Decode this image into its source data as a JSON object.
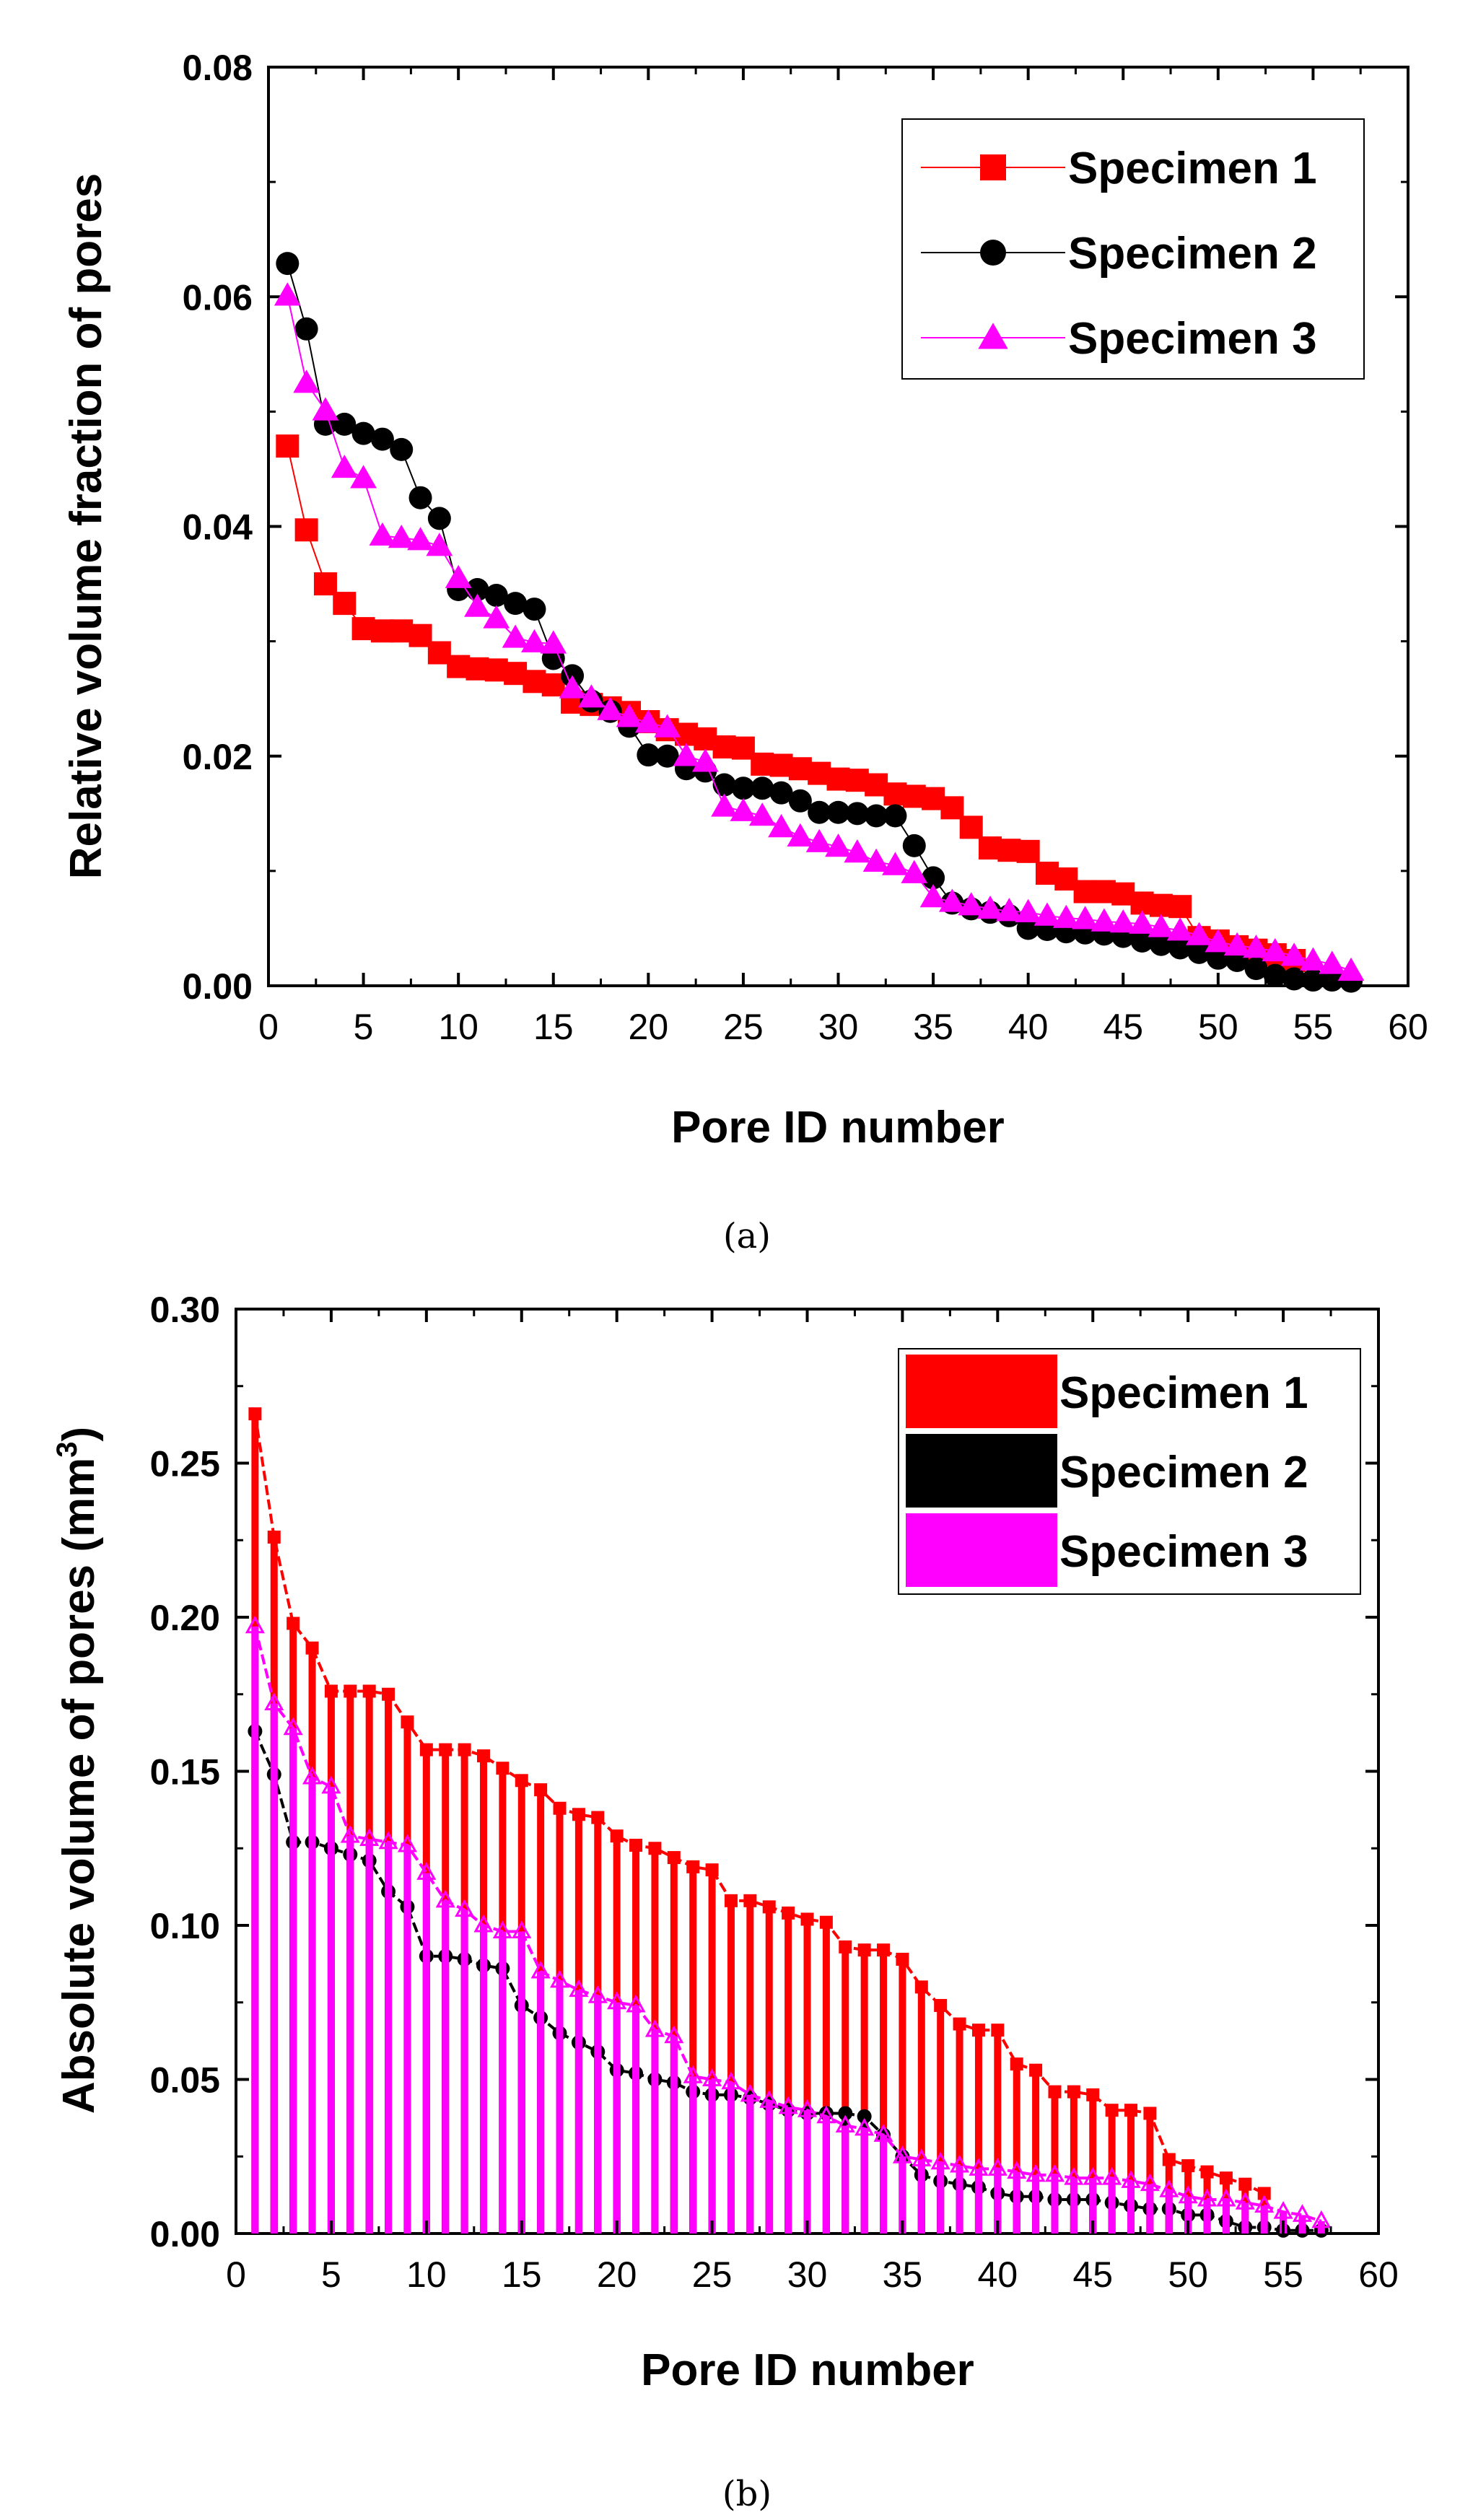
{
  "chart_data": [
    {
      "panel": "(a)",
      "type": "line",
      "title": "",
      "xlabel": "Pore ID number",
      "ylabel": "Relative volume fraction of pores",
      "xlim": [
        0,
        60
      ],
      "ylim": [
        0,
        0.08
      ],
      "xticks": [
        0,
        5,
        10,
        15,
        20,
        25,
        30,
        35,
        40,
        45,
        50,
        55,
        60
      ],
      "yticks": [
        "0.00",
        "0.02",
        "0.04",
        "0.06",
        "0.08"
      ],
      "legend_position": "top-right",
      "series": [
        {
          "name": "Specimen 1",
          "color": "#ff0000",
          "marker": "square",
          "x": [
            1,
            2,
            3,
            4,
            5,
            6,
            7,
            8,
            9,
            10,
            11,
            12,
            13,
            14,
            15,
            16,
            17,
            18,
            19,
            20,
            21,
            22,
            23,
            24,
            25,
            26,
            27,
            28,
            29,
            30,
            31,
            32,
            33,
            34,
            35,
            36,
            37,
            38,
            39,
            40,
            41,
            42,
            43,
            44,
            45,
            46,
            47,
            48,
            49,
            50,
            51,
            52,
            53,
            54
          ],
          "values": [
            0.047,
            0.0397,
            0.035,
            0.0333,
            0.0311,
            0.0309,
            0.0309,
            0.0305,
            0.029,
            0.0278,
            0.0276,
            0.0275,
            0.0272,
            0.0265,
            0.0262,
            0.0247,
            0.0245,
            0.0242,
            0.0238,
            0.023,
            0.0223,
            0.0219,
            0.0215,
            0.0208,
            0.0207,
            0.0193,
            0.0192,
            0.0189,
            0.0185,
            0.018,
            0.0179,
            0.0175,
            0.0167,
            0.0165,
            0.0163,
            0.0155,
            0.0138,
            0.012,
            0.0118,
            0.0117,
            0.0098,
            0.0093,
            0.0082,
            0.0082,
            0.008,
            0.0072,
            0.007,
            0.0069,
            0.0042,
            0.0039,
            0.0034,
            0.0031,
            0.0027,
            0.0022
          ]
        },
        {
          "name": "Specimen 2",
          "color": "#000000",
          "marker": "circle",
          "x": [
            1,
            2,
            3,
            4,
            5,
            6,
            7,
            8,
            9,
            10,
            11,
            12,
            13,
            14,
            15,
            16,
            17,
            18,
            19,
            20,
            21,
            22,
            23,
            24,
            25,
            26,
            27,
            28,
            29,
            30,
            31,
            32,
            33,
            34,
            35,
            36,
            37,
            38,
            39,
            40,
            41,
            42,
            43,
            44,
            45,
            46,
            47,
            48,
            49,
            50,
            51,
            52,
            53,
            54,
            55,
            56,
            57
          ],
          "values": [
            0.0629,
            0.0572,
            0.0489,
            0.0489,
            0.0481,
            0.0476,
            0.0467,
            0.0425,
            0.0407,
            0.0345,
            0.0345,
            0.034,
            0.0333,
            0.0328,
            0.0285,
            0.027,
            0.0248,
            0.0239,
            0.0226,
            0.0201,
            0.02,
            0.0189,
            0.0187,
            0.0175,
            0.0172,
            0.0172,
            0.0168,
            0.0161,
            0.0151,
            0.0151,
            0.015,
            0.0148,
            0.0148,
            0.0122,
            0.0094,
            0.0072,
            0.0067,
            0.0064,
            0.0061,
            0.005,
            0.0049,
            0.0047,
            0.0046,
            0.0045,
            0.0043,
            0.0039,
            0.0036,
            0.0033,
            0.0029,
            0.0024,
            0.0022,
            0.0015,
            0.0009,
            0.0006,
            0.0005,
            0.0005,
            0.0004
          ]
        },
        {
          "name": "Specimen 3",
          "color": "#ff00ff",
          "marker": "triangle",
          "x": [
            1,
            2,
            3,
            4,
            5,
            6,
            7,
            8,
            9,
            10,
            11,
            12,
            13,
            14,
            15,
            16,
            17,
            18,
            19,
            20,
            21,
            22,
            23,
            24,
            25,
            26,
            27,
            28,
            29,
            30,
            31,
            32,
            33,
            34,
            35,
            36,
            37,
            38,
            39,
            40,
            41,
            42,
            43,
            44,
            45,
            46,
            47,
            48,
            49,
            50,
            51,
            52,
            53,
            54,
            55,
            56,
            57
          ],
          "values": [
            0.0601,
            0.0525,
            0.0501,
            0.0451,
            0.0442,
            0.0392,
            0.039,
            0.0388,
            0.0383,
            0.0355,
            0.033,
            0.032,
            0.0303,
            0.0299,
            0.0298,
            0.0259,
            0.0251,
            0.024,
            0.0234,
            0.0229,
            0.0225,
            0.02,
            0.0195,
            0.0156,
            0.0152,
            0.0148,
            0.0138,
            0.013,
            0.0125,
            0.0121,
            0.0116,
            0.0108,
            0.0105,
            0.0098,
            0.0077,
            0.0073,
            0.007,
            0.0067,
            0.0065,
            0.0064,
            0.0061,
            0.0059,
            0.0058,
            0.0056,
            0.0055,
            0.0054,
            0.0051,
            0.0048,
            0.0044,
            0.0038,
            0.0035,
            0.0033,
            0.003,
            0.0026,
            0.0022,
            0.0019,
            0.0013
          ]
        }
      ]
    },
    {
      "panel": "(b)",
      "type": "bar",
      "title": "",
      "xlabel": "Pore ID number",
      "ylabel": "Absolute volume of pores (mm",
      "ylabel_superscript": "3",
      "ylabel_suffix": ")",
      "xlim": [
        0,
        60
      ],
      "ylim": [
        0,
        0.3
      ],
      "xticks": [
        0,
        5,
        10,
        15,
        20,
        25,
        30,
        35,
        40,
        45,
        50,
        55,
        60
      ],
      "yticks": [
        "0.00",
        "0.05",
        "0.10",
        "0.15",
        "0.20",
        "0.25",
        "0.30"
      ],
      "legend_position": "top-right",
      "series": [
        {
          "name": "Specimen 1",
          "color": "#ff0000",
          "x": [
            1,
            2,
            3,
            4,
            5,
            6,
            7,
            8,
            9,
            10,
            11,
            12,
            13,
            14,
            15,
            16,
            17,
            18,
            19,
            20,
            21,
            22,
            23,
            24,
            25,
            26,
            27,
            28,
            29,
            30,
            31,
            32,
            33,
            34,
            35,
            36,
            37,
            38,
            39,
            40,
            41,
            42,
            43,
            44,
            45,
            46,
            47,
            48,
            49,
            50,
            51,
            52,
            53,
            54
          ],
          "values": [
            0.266,
            0.226,
            0.198,
            0.19,
            0.176,
            0.176,
            0.176,
            0.175,
            0.166,
            0.157,
            0.157,
            0.157,
            0.155,
            0.151,
            0.147,
            0.144,
            0.138,
            0.136,
            0.135,
            0.129,
            0.126,
            0.125,
            0.122,
            0.119,
            0.118,
            0.108,
            0.108,
            0.106,
            0.104,
            0.102,
            0.101,
            0.093,
            0.092,
            0.092,
            0.089,
            0.08,
            0.074,
            0.068,
            0.066,
            0.066,
            0.055,
            0.053,
            0.046,
            0.046,
            0.045,
            0.04,
            0.04,
            0.039,
            0.024,
            0.022,
            0.02,
            0.018,
            0.016,
            0.013
          ]
        },
        {
          "name": "Specimen 2",
          "color": "#000000",
          "x": [
            1,
            2,
            3,
            4,
            5,
            6,
            7,
            8,
            9,
            10,
            11,
            12,
            13,
            14,
            15,
            16,
            17,
            18,
            19,
            20,
            21,
            22,
            23,
            24,
            25,
            26,
            27,
            28,
            29,
            30,
            31,
            32,
            33,
            34,
            35,
            36,
            37,
            38,
            39,
            40,
            41,
            42,
            43,
            44,
            45,
            46,
            47,
            48,
            49,
            50,
            51,
            52,
            53,
            54,
            55,
            56,
            57
          ],
          "values": [
            0.163,
            0.149,
            0.127,
            0.127,
            0.125,
            0.123,
            0.121,
            0.111,
            0.106,
            0.09,
            0.09,
            0.089,
            0.087,
            0.086,
            0.074,
            0.07,
            0.065,
            0.062,
            0.059,
            0.053,
            0.052,
            0.05,
            0.049,
            0.046,
            0.045,
            0.045,
            0.044,
            0.042,
            0.04,
            0.039,
            0.039,
            0.039,
            0.038,
            0.032,
            0.025,
            0.019,
            0.017,
            0.016,
            0.015,
            0.013,
            0.012,
            0.012,
            0.011,
            0.011,
            0.011,
            0.01,
            0.009,
            0.008,
            0.008,
            0.006,
            0.006,
            0.004,
            0.002,
            0.002,
            0.001,
            0.001,
            0.001
          ]
        },
        {
          "name": "Specimen 3",
          "color": "#ff00ff",
          "x": [
            1,
            2,
            3,
            4,
            5,
            6,
            7,
            8,
            9,
            10,
            11,
            12,
            13,
            14,
            15,
            16,
            17,
            18,
            19,
            20,
            21,
            22,
            23,
            24,
            25,
            26,
            27,
            28,
            29,
            30,
            31,
            32,
            33,
            34,
            35,
            36,
            37,
            38,
            39,
            40,
            41,
            42,
            43,
            44,
            45,
            46,
            47,
            48,
            49,
            50,
            51,
            52,
            53,
            54,
            55,
            56,
            57
          ],
          "values": [
            0.197,
            0.172,
            0.164,
            0.148,
            0.145,
            0.129,
            0.128,
            0.127,
            0.126,
            0.117,
            0.108,
            0.105,
            0.1,
            0.098,
            0.098,
            0.085,
            0.082,
            0.079,
            0.077,
            0.075,
            0.074,
            0.066,
            0.064,
            0.051,
            0.05,
            0.049,
            0.045,
            0.043,
            0.041,
            0.04,
            0.038,
            0.035,
            0.034,
            0.032,
            0.025,
            0.024,
            0.023,
            0.022,
            0.021,
            0.021,
            0.02,
            0.019,
            0.019,
            0.018,
            0.018,
            0.018,
            0.017,
            0.016,
            0.014,
            0.012,
            0.011,
            0.011,
            0.01,
            0.009,
            0.007,
            0.006,
            0.004
          ]
        }
      ]
    }
  ]
}
